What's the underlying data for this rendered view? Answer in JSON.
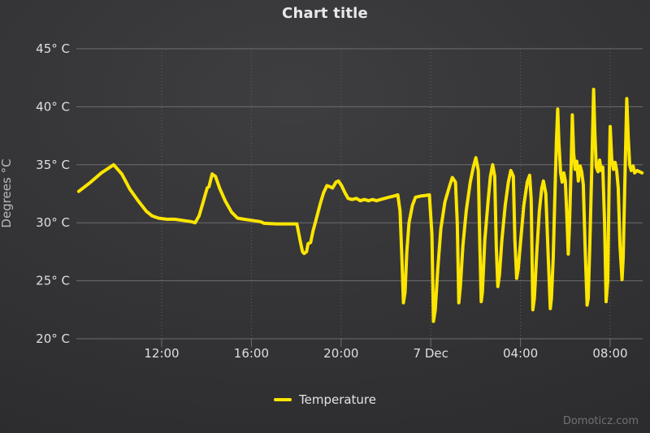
{
  "title": "Chart title",
  "y_axis_title": "Degrees °C",
  "watermark": "Domoticz.com",
  "legend": {
    "items": [
      {
        "label": "Temperature",
        "color": "#fce500"
      }
    ]
  },
  "colors": {
    "series": "#fce500",
    "background_center": "#3e3e40",
    "background_edge": "#28282a",
    "grid": "#6e6e71",
    "grid_dotted": "#5f5f62",
    "axis": "#6e6e71",
    "tick_label": "#dfdfe2",
    "title": "#e8e8ea",
    "axis_title": "#b9b9bd",
    "watermark": "#717174"
  },
  "chart_data": {
    "type": "line",
    "title": "Chart title",
    "xlabel": "",
    "ylabel": "Degrees °C",
    "ylim": [
      20,
      45
    ],
    "grid": true,
    "legend_position": "bottom",
    "x_unit": "hours since 6 Dec 00:00",
    "x_range": [
      8.3,
      33.42
    ],
    "y_ticks": [
      {
        "value": 45,
        "label": "45° C"
      },
      {
        "value": 40,
        "label": "40° C"
      },
      {
        "value": 35,
        "label": "35° C"
      },
      {
        "value": 30,
        "label": "30° C"
      },
      {
        "value": 25,
        "label": "25° C"
      },
      {
        "value": 20,
        "label": "20° C"
      }
    ],
    "x_ticks": [
      {
        "value": 12,
        "label": "12:00"
      },
      {
        "value": 16,
        "label": "16:00"
      },
      {
        "value": 20,
        "label": "20:00"
      },
      {
        "value": 24,
        "label": "7 Dec"
      },
      {
        "value": 28,
        "label": "04:00"
      },
      {
        "value": 32,
        "label": "08:00"
      }
    ],
    "series": [
      {
        "name": "Temperature",
        "color": "#fce500",
        "points": [
          [
            8.3,
            32.7
          ],
          [
            8.77,
            33.4
          ],
          [
            9.31,
            34.3
          ],
          [
            9.86,
            35.0
          ],
          [
            10.22,
            34.2
          ],
          [
            10.58,
            32.9
          ],
          [
            10.95,
            31.9
          ],
          [
            11.31,
            31.0
          ],
          [
            11.56,
            30.6
          ],
          [
            11.85,
            30.4
          ],
          [
            12.22,
            30.3
          ],
          [
            12.58,
            30.3
          ],
          [
            12.94,
            30.2
          ],
          [
            13.31,
            30.1
          ],
          [
            13.49,
            30.0
          ],
          [
            13.67,
            30.6
          ],
          [
            13.85,
            31.8
          ],
          [
            14.03,
            33.0
          ],
          [
            14.11,
            33.1
          ],
          [
            14.25,
            34.2
          ],
          [
            14.4,
            34.0
          ],
          [
            14.58,
            33.0
          ],
          [
            14.83,
            31.9
          ],
          [
            15.12,
            30.9
          ],
          [
            15.38,
            30.4
          ],
          [
            15.67,
            30.3
          ],
          [
            16.03,
            30.2
          ],
          [
            16.39,
            30.1
          ],
          [
            16.57,
            29.95
          ],
          [
            17.12,
            29.9
          ],
          [
            17.66,
            29.9
          ],
          [
            18.03,
            29.9
          ],
          [
            18.17,
            28.5
          ],
          [
            18.28,
            27.5
          ],
          [
            18.35,
            27.35
          ],
          [
            18.46,
            27.5
          ],
          [
            18.53,
            28.2
          ],
          [
            18.64,
            28.3
          ],
          [
            18.75,
            29.3
          ],
          [
            18.93,
            30.6
          ],
          [
            19.08,
            31.7
          ],
          [
            19.22,
            32.6
          ],
          [
            19.37,
            33.2
          ],
          [
            19.51,
            33.1
          ],
          [
            19.62,
            33.0
          ],
          [
            19.77,
            33.5
          ],
          [
            19.88,
            33.6
          ],
          [
            20.02,
            33.2
          ],
          [
            20.17,
            32.6
          ],
          [
            20.31,
            32.1
          ],
          [
            20.49,
            32.0
          ],
          [
            20.68,
            32.1
          ],
          [
            20.86,
            31.9
          ],
          [
            21.04,
            32.0
          ],
          [
            21.22,
            31.9
          ],
          [
            21.4,
            32.0
          ],
          [
            21.58,
            31.9
          ],
          [
            21.76,
            32.0
          ],
          [
            21.95,
            32.1
          ],
          [
            22.13,
            32.2
          ],
          [
            22.34,
            32.3
          ],
          [
            22.53,
            32.4
          ],
          [
            22.63,
            31.0
          ],
          [
            22.71,
            27.0
          ],
          [
            22.78,
            23.1
          ],
          [
            22.85,
            24.0
          ],
          [
            22.93,
            27.5
          ],
          [
            23.03,
            30.0
          ],
          [
            23.18,
            31.5
          ],
          [
            23.32,
            32.2
          ],
          [
            23.54,
            32.3
          ],
          [
            23.76,
            32.35
          ],
          [
            23.94,
            32.4
          ],
          [
            24.05,
            29.0
          ],
          [
            24.12,
            21.5
          ],
          [
            24.2,
            22.5
          ],
          [
            24.31,
            26.0
          ],
          [
            24.45,
            29.5
          ],
          [
            24.63,
            31.8
          ],
          [
            24.81,
            33.0
          ],
          [
            24.96,
            33.9
          ],
          [
            25.1,
            33.5
          ],
          [
            25.18,
            30.0
          ],
          [
            25.25,
            23.1
          ],
          [
            25.32,
            24.5
          ],
          [
            25.43,
            28.0
          ],
          [
            25.58,
            31.0
          ],
          [
            25.76,
            33.5
          ],
          [
            25.9,
            34.8
          ],
          [
            26.01,
            35.6
          ],
          [
            26.12,
            34.5
          ],
          [
            26.19,
            28.0
          ],
          [
            26.25,
            23.2
          ],
          [
            26.3,
            24.0
          ],
          [
            26.41,
            28.5
          ],
          [
            26.56,
            32.0
          ],
          [
            26.66,
            34.0
          ],
          [
            26.76,
            35.0
          ],
          [
            26.85,
            34.0
          ],
          [
            26.92,
            28.0
          ],
          [
            26.99,
            24.5
          ],
          [
            27.06,
            25.5
          ],
          [
            27.17,
            28.5
          ],
          [
            27.32,
            31.5
          ],
          [
            27.46,
            33.5
          ],
          [
            27.57,
            34.5
          ],
          [
            27.68,
            34.0
          ],
          [
            27.75,
            28.5
          ],
          [
            27.83,
            25.2
          ],
          [
            27.9,
            26.0
          ],
          [
            28.01,
            28.5
          ],
          [
            28.15,
            31.5
          ],
          [
            28.3,
            33.5
          ],
          [
            28.41,
            34.1
          ],
          [
            28.48,
            32.0
          ],
          [
            28.55,
            22.5
          ],
          [
            28.62,
            23.5
          ],
          [
            28.73,
            27.5
          ],
          [
            28.84,
            31.0
          ],
          [
            28.95,
            33.0
          ],
          [
            29.02,
            33.6
          ],
          [
            29.13,
            32.5
          ],
          [
            29.24,
            27.0
          ],
          [
            29.33,
            22.6
          ],
          [
            29.38,
            23.5
          ],
          [
            29.46,
            27.0
          ],
          [
            29.53,
            32.0
          ],
          [
            29.6,
            37.0
          ],
          [
            29.66,
            39.8
          ],
          [
            29.71,
            37.0
          ],
          [
            29.79,
            34.3
          ],
          [
            29.86,
            33.5
          ],
          [
            29.93,
            34.3
          ],
          [
            30.0,
            33.6
          ],
          [
            30.08,
            30.0
          ],
          [
            30.13,
            27.3
          ],
          [
            30.19,
            30.0
          ],
          [
            30.26,
            35.0
          ],
          [
            30.31,
            39.3
          ],
          [
            30.37,
            36.0
          ],
          [
            30.44,
            34.6
          ],
          [
            30.51,
            35.3
          ],
          [
            30.58,
            33.6
          ],
          [
            30.66,
            34.9
          ],
          [
            30.73,
            34.4
          ],
          [
            30.8,
            33.3
          ],
          [
            30.88,
            28.0
          ],
          [
            30.97,
            22.9
          ],
          [
            31.02,
            23.5
          ],
          [
            31.09,
            28.0
          ],
          [
            31.17,
            34.0
          ],
          [
            31.26,
            41.5
          ],
          [
            31.31,
            38.0
          ],
          [
            31.38,
            34.8
          ],
          [
            31.46,
            34.4
          ],
          [
            31.53,
            35.4
          ],
          [
            31.6,
            34.5
          ],
          [
            31.67,
            34.8
          ],
          [
            31.75,
            30.0
          ],
          [
            31.82,
            23.2
          ],
          [
            31.89,
            25.0
          ],
          [
            31.95,
            33.0
          ],
          [
            32.0,
            38.3
          ],
          [
            32.07,
            35.5
          ],
          [
            32.15,
            34.6
          ],
          [
            32.22,
            35.2
          ],
          [
            32.29,
            34.5
          ],
          [
            32.36,
            33.0
          ],
          [
            32.44,
            28.0
          ],
          [
            32.53,
            25.1
          ],
          [
            32.58,
            27.0
          ],
          [
            32.65,
            33.0
          ],
          [
            32.74,
            40.7
          ],
          [
            32.8,
            37.5
          ],
          [
            32.87,
            35.0
          ],
          [
            32.94,
            34.5
          ],
          [
            33.02,
            34.9
          ],
          [
            33.09,
            34.3
          ],
          [
            33.2,
            34.5
          ],
          [
            33.31,
            34.4
          ],
          [
            33.42,
            34.3
          ]
        ]
      }
    ]
  }
}
